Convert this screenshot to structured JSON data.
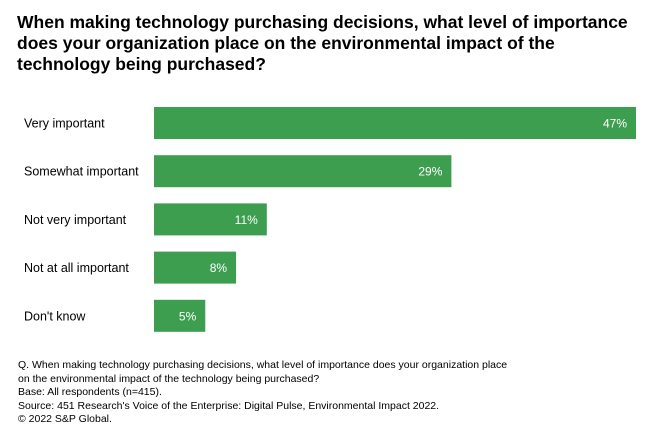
{
  "chart_data": {
    "type": "bar",
    "orientation": "horizontal",
    "title": "When making technology purchasing decisions, what level of importance does your organization place on the environmental impact of the technology being purchased?",
    "categories": [
      "Very important",
      "Somewhat important",
      "Not very important",
      "Not at all important",
      "Don't know"
    ],
    "values": [
      47,
      29,
      11,
      8,
      5
    ],
    "value_labels": [
      "47%",
      "29%",
      "11%",
      "8%",
      "5%"
    ],
    "unit": "%",
    "xlabel": "",
    "ylabel": "",
    "xlim": [
      0,
      47
    ],
    "grid": false,
    "colors": {
      "bar": "#3d9e4f",
      "label": "#ffffff"
    }
  },
  "footnotes": [
    "Q. When making technology purchasing decisions, what level of importance does your organization place",
    "on the environmental impact of the technology being purchased?",
    "Base: All respondents (n=415).",
    "Source: 451 Research's Voice of the Enterprise: Digital Pulse, Environmental Impact 2022.",
    "© 2022 S&P Global."
  ]
}
